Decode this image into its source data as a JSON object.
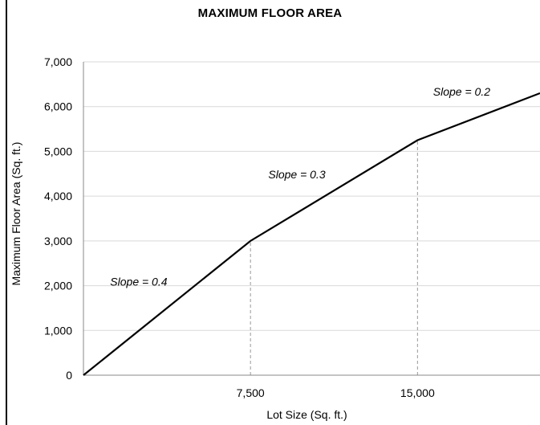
{
  "chart_data": {
    "type": "line",
    "title": "MAXIMUM FLOOR AREA",
    "xlabel": "Lot Size (Sq. ft.)",
    "ylabel": "Maximum Floor Area (Sq. ft.)",
    "xlim": [
      0,
      20500
    ],
    "ylim": [
      0,
      7000
    ],
    "x_ticks": [
      {
        "value": 7500,
        "label": "7,500"
      },
      {
        "value": 15000,
        "label": "15,000"
      }
    ],
    "y_ticks": [
      {
        "value": 0,
        "label": "0"
      },
      {
        "value": 1000,
        "label": "1,000"
      },
      {
        "value": 2000,
        "label": "2,000"
      },
      {
        "value": 3000,
        "label": "3,000"
      },
      {
        "value": 4000,
        "label": "4,000"
      },
      {
        "value": 5000,
        "label": "5,000"
      },
      {
        "value": 6000,
        "label": "6,000"
      },
      {
        "value": 7000,
        "label": "7,000"
      }
    ],
    "series": [
      {
        "x": [
          0,
          7500,
          15000,
          20500
        ],
        "y": [
          0,
          3000,
          5250,
          6300
        ]
      }
    ],
    "reference_lines": [
      {
        "x": 7500,
        "y_to": 3000,
        "style": "dashed"
      },
      {
        "x": 15000,
        "y_to": 5250,
        "style": "dashed"
      }
    ],
    "annotations": [
      {
        "text": "Slope = 0.4",
        "x": 1200,
        "y": 2000
      },
      {
        "text": "Slope = 0.3",
        "x": 8300,
        "y": 4400
      },
      {
        "text": "Slope = 0.2",
        "x": 15700,
        "y": 6250
      }
    ],
    "grid": true,
    "colors": {
      "line": "#000000",
      "grid": "#d9d9d9",
      "reference": "#999999"
    }
  }
}
